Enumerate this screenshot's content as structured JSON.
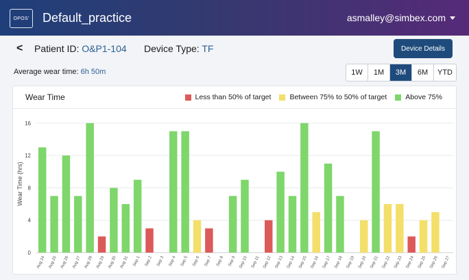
{
  "header": {
    "logo_text": "OPOS'",
    "app_title": "Default_practice",
    "user_email": "asmalley@simbex.com"
  },
  "patient": {
    "back_glyph": "<",
    "id_label": "Patient ID:",
    "id_value": "O&P1-104",
    "device_label": "Device Type:",
    "device_value": "TF",
    "details_button": "Device Details",
    "avg_label": "Average wear time:",
    "avg_value": "6h 50m"
  },
  "ranges": {
    "items": [
      "1W",
      "1M",
      "3M",
      "6M",
      "YTD"
    ],
    "active": "3M"
  },
  "colors": {
    "red": "#dc5a5a",
    "yellow": "#f3df6a",
    "green": "#7fd66b",
    "accent": "#1f4b7c"
  },
  "chart_data": {
    "type": "bar",
    "title": "Wear Time",
    "ylabel": "Wear Time (hrs)",
    "xlabel": "",
    "ylim": [
      0,
      17
    ],
    "yticks": [
      0,
      4,
      8,
      12,
      16
    ],
    "grid": true,
    "legend": [
      {
        "label": "Less than 50% of target",
        "color": "red"
      },
      {
        "label": "Between 75% to 50% of target",
        "color": "yellow"
      },
      {
        "label": "Above 75%",
        "color": "green"
      }
    ],
    "categories": [
      "Aug 24",
      "Aug 25",
      "Aug 26",
      "Aug 27",
      "Aug 28",
      "Aug 29",
      "Aug 30",
      "Aug 31",
      "Sep 1",
      "Sep 2",
      "Sep 3",
      "Sep 4",
      "Sep 5",
      "Sep 6",
      "Sep 7",
      "Sep 8",
      "Sep 9",
      "Sep 10",
      "Sep 11",
      "Sep 12",
      "Sep 13",
      "Sep 14",
      "Sep 15",
      "Sep 16",
      "Sep 17",
      "Sep 18",
      "Sep 19",
      "Sep 20",
      "Sep 21",
      "Sep 22",
      "Sep 23",
      "Sep 24",
      "Sep 25",
      "Sep 26",
      "Sep 27"
    ],
    "values": [
      13,
      7,
      12,
      7,
      16,
      2,
      8,
      6,
      9,
      3,
      0,
      15,
      15,
      4,
      3,
      0,
      7,
      9,
      0,
      4,
      10,
      7,
      16,
      5,
      11,
      7,
      0,
      4,
      15,
      6,
      6,
      2,
      4,
      5,
      0
    ],
    "bar_colors": [
      "green",
      "green",
      "green",
      "green",
      "green",
      "red",
      "green",
      "green",
      "green",
      "red",
      "green",
      "green",
      "green",
      "yellow",
      "red",
      "green",
      "green",
      "green",
      "green",
      "red",
      "green",
      "green",
      "green",
      "yellow",
      "green",
      "green",
      "green",
      "yellow",
      "green",
      "yellow",
      "yellow",
      "red",
      "yellow",
      "yellow",
      "green"
    ]
  }
}
